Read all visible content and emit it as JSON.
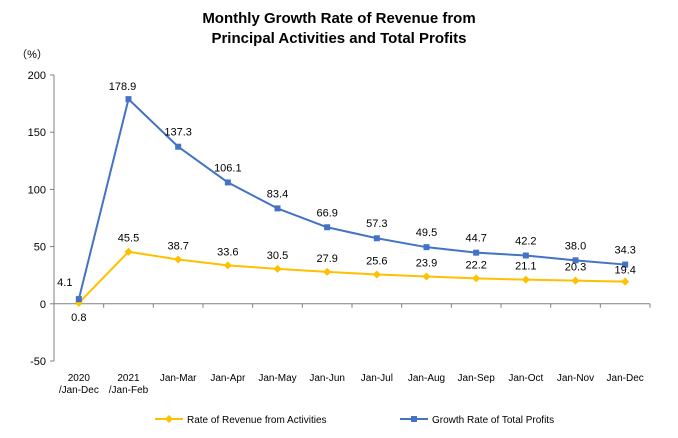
{
  "chart_data": {
    "type": "line",
    "title_lines": [
      "Monthly Growth Rate of Revenue from",
      "Principal Activities  and Total Profits"
    ],
    "ylabel": "（%）",
    "ylim": [
      -50,
      200
    ],
    "yticks": [
      -50,
      0,
      50,
      100,
      150,
      200
    ],
    "categories": [
      [
        "2020",
        "/Jan-Dec"
      ],
      [
        "2021",
        "/Jan-Feb"
      ],
      [
        "Jan-Mar"
      ],
      [
        "Jan-Apr"
      ],
      [
        "Jan-May"
      ],
      [
        "Jan-Jun"
      ],
      [
        "Jan-Jul"
      ],
      [
        "Jan-Aug"
      ],
      [
        "Jan-Sep"
      ],
      [
        "Jan-Oct"
      ],
      [
        "Jan-Nov"
      ],
      [
        "Jan-Dec"
      ]
    ],
    "series": [
      {
        "name": "Rate of Revenue from Activities",
        "color": "#FFC000",
        "marker": "diamond",
        "values": [
          0.8,
          45.5,
          38.7,
          33.6,
          30.5,
          27.9,
          25.6,
          23.9,
          22.2,
          21.1,
          20.3,
          19.4
        ],
        "labels": [
          "0.8",
          "45.5",
          "38.7",
          "33.6",
          "30.5",
          "27.9",
          "25.6",
          "23.9",
          "22.2",
          "21.1",
          "20.3",
          "19.4"
        ]
      },
      {
        "name": "Growth Rate of Total Profits",
        "color": "#4472C4",
        "marker": "square",
        "values": [
          4.1,
          178.9,
          137.3,
          106.1,
          83.4,
          66.9,
          57.3,
          49.5,
          44.7,
          42.2,
          38.0,
          34.3
        ],
        "labels": [
          "4.1",
          "178.9",
          "137.3",
          "106.1",
          "83.4",
          "66.9",
          "57.3",
          "49.5",
          "44.7",
          "42.2",
          "38.0",
          "34.3"
        ]
      }
    ],
    "legend_position": "bottom",
    "grid": false
  }
}
